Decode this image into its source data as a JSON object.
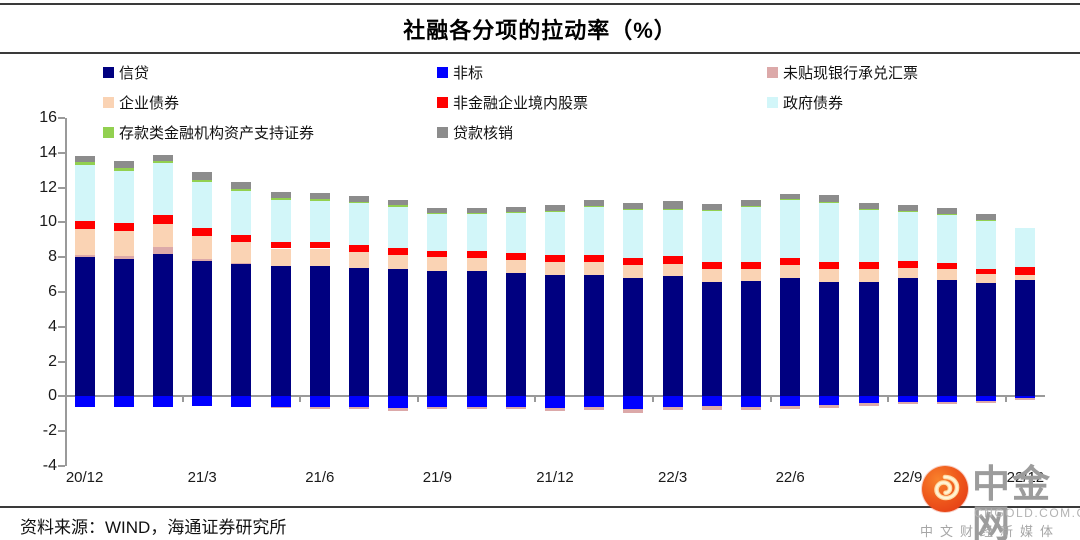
{
  "header": {
    "title": "社融各分项的拉动率（%）"
  },
  "footer": {
    "source": "资料来源：WIND，海通证券研究所"
  },
  "watermark": {
    "brand": "中金网",
    "domain": "CNGOLD.COM.CN",
    "tagline": "中文财经新媒体",
    "logo_color": "#e8401c"
  },
  "colors": {
    "axis": "#9a9a9a",
    "rule": "#3a3a3a",
    "background": "#ffffff"
  },
  "chart_data": {
    "type": "bar",
    "stacked": true,
    "title": "社融各分项的拉动率（%）",
    "xlabel": "",
    "ylabel": "",
    "ylim": [
      -4,
      16
    ],
    "y_tick_step": 2,
    "grid": false,
    "legend_position": "top",
    "x_label_every": 3,
    "x": [
      "20/12",
      "21/1",
      "21/2",
      "21/3",
      "21/4",
      "21/5",
      "21/6",
      "21/7",
      "21/8",
      "21/9",
      "21/10",
      "21/11",
      "21/12",
      "22/1",
      "22/2",
      "22/3",
      "22/4",
      "22/5",
      "22/6",
      "22/7",
      "22/8",
      "22/9",
      "22/10",
      "22/11",
      "22/12"
    ],
    "series": [
      {
        "name": "信贷",
        "color": "#000080",
        "values": [
          8.0,
          7.9,
          8.2,
          7.8,
          7.6,
          7.5,
          7.5,
          7.4,
          7.3,
          7.2,
          7.2,
          7.1,
          7.0,
          7.0,
          6.8,
          6.9,
          6.6,
          6.65,
          6.8,
          6.6,
          6.6,
          6.8,
          6.7,
          6.5,
          6.7
        ]
      },
      {
        "name": "非标",
        "color": "#0000ff",
        "values": [
          -0.6,
          -0.6,
          -0.6,
          -0.55,
          -0.6,
          -0.6,
          -0.6,
          -0.6,
          -0.65,
          -0.6,
          -0.6,
          -0.6,
          -0.65,
          -0.6,
          -0.7,
          -0.6,
          -0.55,
          -0.6,
          -0.55,
          -0.5,
          -0.4,
          -0.35,
          -0.3,
          -0.25,
          -0.1
        ]
      },
      {
        "name": "未贴现银行承兑汇票",
        "color": "#dca9a9",
        "values": [
          0.1,
          0.15,
          0.4,
          0.1,
          0.05,
          -0.05,
          -0.1,
          -0.15,
          -0.2,
          -0.15,
          -0.15,
          -0.15,
          -0.2,
          -0.2,
          -0.25,
          -0.2,
          -0.25,
          -0.2,
          -0.2,
          -0.15,
          -0.15,
          -0.1,
          -0.15,
          -0.15,
          -0.1
        ]
      },
      {
        "name": "企业债券",
        "color": "#fad3b4",
        "values": [
          1.5,
          1.45,
          1.3,
          1.3,
          1.2,
          1.0,
          1.0,
          0.9,
          0.85,
          0.8,
          0.75,
          0.75,
          0.7,
          0.75,
          0.75,
          0.7,
          0.75,
          0.7,
          0.75,
          0.75,
          0.7,
          0.6,
          0.6,
          0.55,
          0.3
        ]
      },
      {
        "name": "非金融企业境内股票",
        "color": "#ff0000",
        "values": [
          0.5,
          0.45,
          0.5,
          0.45,
          0.4,
          0.4,
          0.4,
          0.4,
          0.4,
          0.35,
          0.4,
          0.4,
          0.4,
          0.4,
          0.4,
          0.45,
          0.4,
          0.4,
          0.4,
          0.4,
          0.4,
          0.4,
          0.35,
          0.3,
          0.45
        ]
      },
      {
        "name": "政府债券",
        "color": "#d2f6f9",
        "values": [
          3.2,
          3.0,
          3.0,
          2.7,
          2.55,
          2.4,
          2.35,
          2.4,
          2.35,
          2.15,
          2.15,
          2.3,
          2.5,
          2.75,
          2.75,
          2.65,
          2.9,
          3.15,
          3.35,
          3.35,
          3.0,
          2.8,
          2.8,
          2.75,
          2.2
        ]
      },
      {
        "name": "存款类金融机构资产支持证券",
        "color": "#92d050",
        "values": [
          0.15,
          0.2,
          0.15,
          0.1,
          0.1,
          0.1,
          0.1,
          0.1,
          0.1,
          0.05,
          0.05,
          0.05,
          0.05,
          0.05,
          0.05,
          0.05,
          0.05,
          0.05,
          0.05,
          0.1,
          0.05,
          0.05,
          0.05,
          0.05,
          0
        ]
      },
      {
        "name": "贷款核销",
        "color": "#8c8c8c",
        "values": [
          0.35,
          0.4,
          0.35,
          0.45,
          0.4,
          0.35,
          0.35,
          0.3,
          0.3,
          0.3,
          0.3,
          0.3,
          0.35,
          0.35,
          0.35,
          0.5,
          0.35,
          0.35,
          0.3,
          0.35,
          0.35,
          0.35,
          0.3,
          0.35,
          0
        ]
      }
    ]
  }
}
